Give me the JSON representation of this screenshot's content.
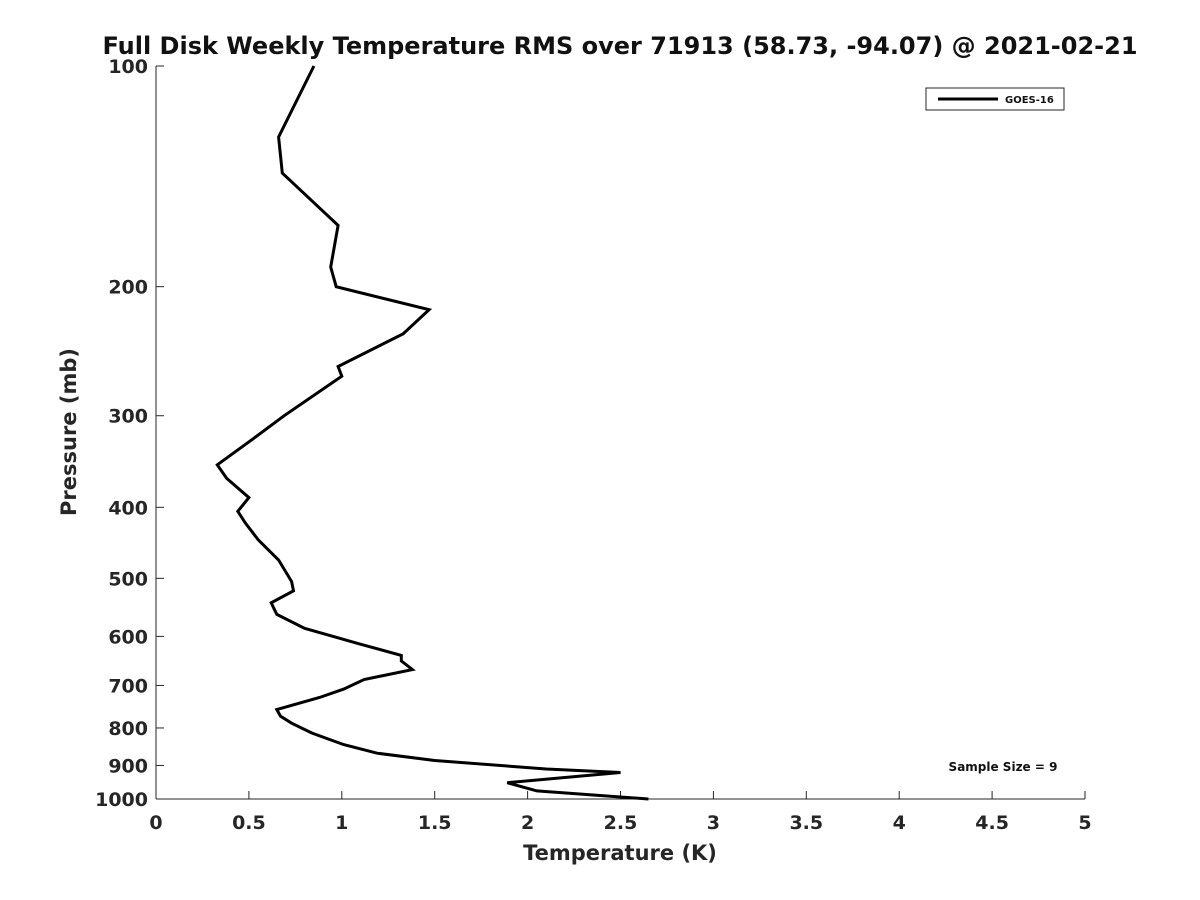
{
  "chart_data": {
    "type": "line",
    "title": "Full Disk Weekly Temperature RMS over 71913 (58.73, -94.07) @ 2021-02-21",
    "xlabel": "Temperature (K)",
    "ylabel": "Pressure (mb)",
    "xlim": [
      0,
      5
    ],
    "ylim": [
      100,
      1000
    ],
    "y_scale": "log",
    "y_reversed": true,
    "xticks": [
      "0",
      "0.5",
      "1",
      "1.5",
      "2",
      "2.5",
      "3",
      "3.5",
      "4",
      "4.5",
      "5"
    ],
    "yticks": [
      "100",
      "200",
      "300",
      "400",
      "500",
      "600",
      "700",
      "800",
      "900",
      "1000"
    ],
    "grid": false,
    "legend_position": "top-right",
    "series": [
      {
        "name": "GOES-16",
        "color": "#000000",
        "x": [
          0.85,
          0.66,
          0.68,
          0.98,
          0.94,
          0.97,
          1.47,
          1.33,
          0.98,
          1.0,
          0.69,
          0.52,
          0.33,
          0.38,
          0.5,
          0.44,
          0.48,
          0.55,
          0.66,
          0.73,
          0.74,
          0.62,
          0.65,
          0.8,
          1.1,
          1.32,
          1.32,
          1.38,
          1.12,
          1.01,
          0.88,
          0.65,
          0.67,
          0.73,
          0.84,
          1.01,
          1.19,
          1.5,
          2.1,
          2.5,
          1.89,
          2.05,
          2.65
        ],
        "y": [
          100,
          125,
          140,
          165,
          188,
          200,
          215,
          232,
          257,
          265,
          300,
          323,
          350,
          365,
          388,
          405,
          420,
          443,
          472,
          505,
          520,
          540,
          560,
          585,
          615,
          637,
          648,
          666,
          687,
          708,
          727,
          755,
          771,
          788,
          813,
          843,
          866,
          886,
          910,
          920,
          950,
          975,
          1000
        ]
      }
    ],
    "annotation": "Sample Size = 9"
  }
}
